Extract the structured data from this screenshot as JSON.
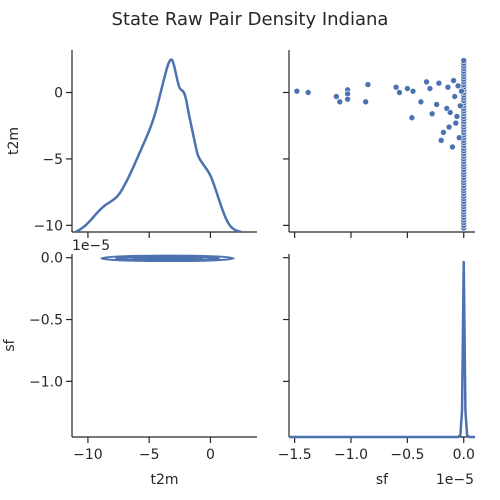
{
  "title": "State Raw Pair Density Indiana",
  "colors": {
    "series": "#4c72b0",
    "axis": "#262626"
  },
  "chart_data": [
    {
      "panel": "t2m-vs-t2m",
      "type": "area",
      "kind": "kde",
      "variable": "t2m",
      "ylabel": "t2m",
      "y_ticks": [
        "0",
        "−5",
        "−10"
      ],
      "y_tick_values": [
        0,
        -5,
        -10
      ],
      "ylim": [
        -10.5,
        3.2
      ],
      "x_range": [
        -11.3,
        3.8
      ],
      "density_curve": {
        "x": [
          -11.0,
          -10.5,
          -10.0,
          -9.5,
          -9.0,
          -8.5,
          -8.0,
          -7.5,
          -7.0,
          -6.5,
          -6.0,
          -5.5,
          -5.0,
          -4.5,
          -4.0,
          -3.5,
          -3.2,
          -3.0,
          -2.7,
          -2.5,
          -2.2,
          -2.0,
          -1.8,
          -1.5,
          -1.2,
          -1.0,
          -0.5,
          0.0,
          0.5,
          1.0,
          1.5,
          2.0,
          2.5
        ],
        "y": [
          0.0,
          0.02,
          0.05,
          0.09,
          0.13,
          0.16,
          0.18,
          0.21,
          0.27,
          0.34,
          0.42,
          0.5,
          0.58,
          0.68,
          0.82,
          0.96,
          1.0,
          0.97,
          0.87,
          0.82,
          0.81,
          0.77,
          0.69,
          0.59,
          0.49,
          0.43,
          0.38,
          0.33,
          0.23,
          0.12,
          0.04,
          0.01,
          0.0
        ]
      }
    },
    {
      "panel": "sf-vs-t2m",
      "type": "scatter",
      "x_variable": "sf",
      "y_variable": "t2m",
      "xlim": [
        -1.55e-05,
        1e-06
      ],
      "ylim": [
        -10.5,
        3.2
      ],
      "points": [
        {
          "x": -1.48e-05,
          "y": 0.1
        },
        {
          "x": -1.38e-05,
          "y": 0.0
        },
        {
          "x": -1.13e-05,
          "y": -0.3
        },
        {
          "x": -1.1e-05,
          "y": -0.7
        },
        {
          "x": -1.03e-05,
          "y": 0.2
        },
        {
          "x": -1.03e-05,
          "y": -0.1
        },
        {
          "x": -1.03e-05,
          "y": -0.5
        },
        {
          "x": -8.7e-06,
          "y": -0.7
        },
        {
          "x": -8.5e-06,
          "y": 0.6
        },
        {
          "x": -6e-06,
          "y": 0.4
        },
        {
          "x": -5.7e-06,
          "y": 0.0
        },
        {
          "x": -5e-06,
          "y": 0.3
        },
        {
          "x": -4.6e-06,
          "y": -1.9
        },
        {
          "x": -4.5e-06,
          "y": 0.1
        },
        {
          "x": -3.8e-06,
          "y": -0.7
        },
        {
          "x": -3.3e-06,
          "y": 0.8
        },
        {
          "x": -3e-06,
          "y": 0.3
        },
        {
          "x": -2.8e-06,
          "y": -1.6
        },
        {
          "x": -2.4e-06,
          "y": -0.9
        },
        {
          "x": -2.2e-06,
          "y": 0.7
        },
        {
          "x": -2e-06,
          "y": -3.6
        },
        {
          "x": -1.8e-06,
          "y": -3.0
        },
        {
          "x": -1.5e-06,
          "y": -1.2
        },
        {
          "x": -1.4e-06,
          "y": 0.4
        },
        {
          "x": -1.3e-06,
          "y": -2.6
        },
        {
          "x": -1.2e-06,
          "y": -1.5
        },
        {
          "x": -1e-06,
          "y": -4.1
        },
        {
          "x": -9e-07,
          "y": 0.9
        },
        {
          "x": -8e-07,
          "y": -0.3
        },
        {
          "x": -7e-07,
          "y": -2.3
        },
        {
          "x": -6e-07,
          "y": -1.8
        },
        {
          "x": -5e-07,
          "y": 0.5
        },
        {
          "x": -4e-07,
          "y": -3.4
        },
        {
          "x": -3e-07,
          "y": -1.0
        },
        {
          "x": -2e-07,
          "y": 0.1
        }
      ],
      "column_at_zero": {
        "x": 0.0,
        "y_from": -10.2,
        "y_to": 2.5
      }
    },
    {
      "panel": "t2m-vs-sf",
      "type": "line",
      "kind": "bivariate-kde-contour",
      "x_variable": "t2m",
      "y_variable": "sf",
      "xlabel": "t2m",
      "ylabel": "sf",
      "x_ticks": [
        "−10",
        "−5",
        "0"
      ],
      "x_tick_values": [
        -10,
        -5,
        0
      ],
      "xlim": [
        -11.3,
        3.8
      ],
      "y_ticks": [
        "0.0",
        "−0.5",
        "−1.0"
      ],
      "y_tick_values": [
        0.0,
        -0.5,
        -1.0
      ],
      "y_scale_label": "1e−5",
      "ylim": [
        -1.45,
        0.03
      ],
      "contour_levels": [
        {
          "center_x": -3.5,
          "center_y": -0.005,
          "x_radius": 5.4,
          "y_radius": 0.022
        },
        {
          "center_x": -3.5,
          "center_y": -0.005,
          "x_radius": 4.2,
          "y_radius": 0.014
        },
        {
          "center_x": -3.5,
          "center_y": -0.005,
          "x_radius": 2.8,
          "y_radius": 0.007
        }
      ]
    },
    {
      "panel": "sf-vs-sf",
      "type": "area",
      "kind": "kde",
      "variable": "sf",
      "xlabel": "sf",
      "x_ticks": [
        "−1.5",
        "−1.0",
        "−0.5",
        "0.0"
      ],
      "x_tick_values": [
        -1.5,
        -1.0,
        -0.5,
        0.0
      ],
      "x_scale_label": "1e−5",
      "xlim": [
        -1.55,
        0.1
      ],
      "density_curve": {
        "x": [
          -1.55,
          -1.0,
          -0.5,
          -0.05,
          -0.03,
          -0.015,
          -0.008,
          0.0,
          0.008,
          0.015,
          0.03,
          0.05,
          0.1
        ],
        "y": [
          0.0,
          0.0,
          0.0,
          0.0,
          0.01,
          0.15,
          0.55,
          1.0,
          0.55,
          0.15,
          0.01,
          0.0,
          0.0
        ]
      }
    }
  ]
}
